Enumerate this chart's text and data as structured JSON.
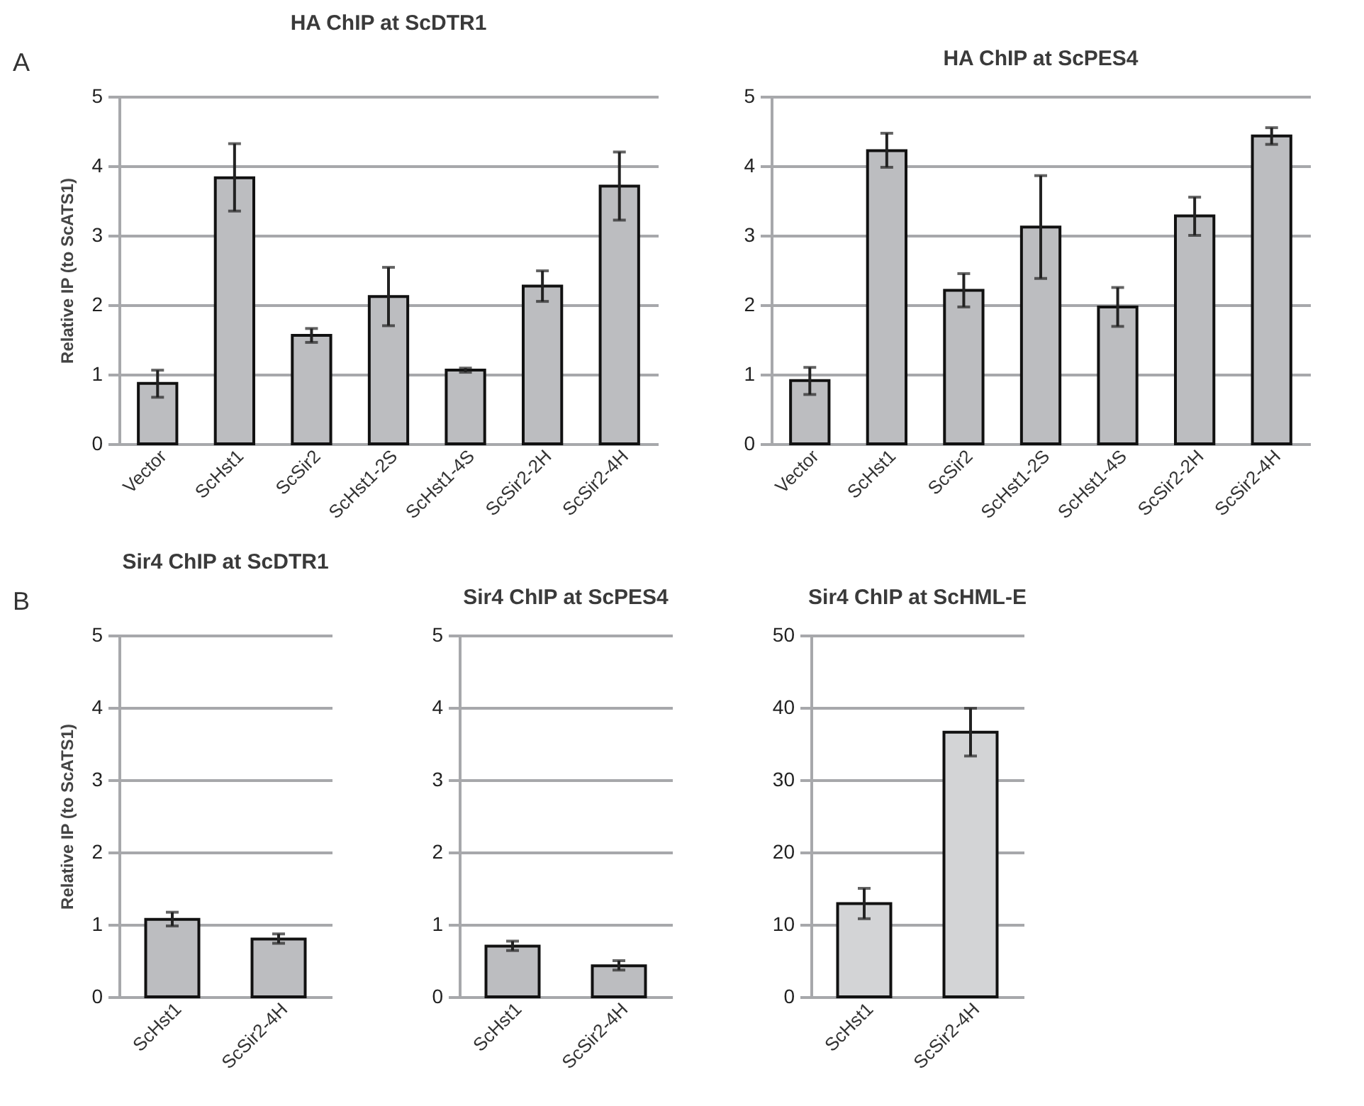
{
  "chart_data": [
    {
      "type": "bar",
      "title": "HA ChIP at ScDTR1",
      "ylabel": "Relative IP (to ScATS1)",
      "annotations": [
        "A"
      ],
      "categories": [
        "Vector",
        "ScHst1",
        "ScSir2",
        "ScHst1-2S",
        "ScHst1-4S",
        "ScSir2-2H",
        "ScSir2-4H"
      ],
      "values": [
        0.87,
        3.83,
        1.56,
        2.12,
        1.06,
        2.27,
        3.71
      ],
      "errors": [
        [
          0.67,
          1.06
        ],
        [
          3.35,
          4.32
        ],
        [
          1.46,
          1.66
        ],
        [
          1.7,
          2.54
        ],
        [
          1.03,
          1.09
        ],
        [
          2.05,
          2.49
        ],
        [
          3.22,
          4.2
        ]
      ],
      "color": "#bcbdc0",
      "ylim": [
        0,
        5
      ],
      "yticks": [
        0,
        1,
        2,
        3,
        4,
        5
      ],
      "grid": "y"
    },
    {
      "type": "bar",
      "title": "HA ChIP at ScPES4",
      "categories": [
        "Vector",
        "ScHst1",
        "ScSir2",
        "ScHst1-2S",
        "ScHst1-4S",
        "ScSir2-2H",
        "ScSir2-4H"
      ],
      "values": [
        0.91,
        4.22,
        2.21,
        3.12,
        1.97,
        3.28,
        4.43
      ],
      "errors": [
        [
          0.71,
          1.1
        ],
        [
          3.98,
          4.47
        ],
        [
          1.97,
          2.45
        ],
        [
          2.38,
          3.86
        ],
        [
          1.69,
          2.25
        ],
        [
          3.0,
          3.55
        ],
        [
          4.31,
          4.55
        ]
      ],
      "color": "#bcbdc0",
      "ylim": [
        0,
        5
      ],
      "yticks": [
        0,
        1,
        2,
        3,
        4,
        5
      ],
      "grid": "y"
    },
    {
      "type": "bar",
      "title": "Sir4 ChIP at ScDTR1",
      "ylabel": "Relative IP (to ScATS1)",
      "annotations": [
        "B"
      ],
      "categories": [
        "ScHst1",
        "ScSir2-4H"
      ],
      "values": [
        1.07,
        0.8
      ],
      "errors": [
        [
          0.98,
          1.17
        ],
        [
          0.74,
          0.87
        ]
      ],
      "color": "#bcbdc0",
      "ylim": [
        0,
        5
      ],
      "yticks": [
        0,
        1,
        2,
        3,
        4,
        5
      ],
      "grid": "y"
    },
    {
      "type": "bar",
      "title": "Sir4 ChIP at ScPES4",
      "categories": [
        "ScHst1",
        "ScSir2-4H"
      ],
      "values": [
        0.7,
        0.43
      ],
      "errors": [
        [
          0.64,
          0.77
        ],
        [
          0.37,
          0.5
        ]
      ],
      "color": "#bcbdc0",
      "ylim": [
        0,
        5
      ],
      "yticks": [
        0,
        1,
        2,
        3,
        4,
        5
      ],
      "grid": "y"
    },
    {
      "type": "bar",
      "title": "Sir4 ChIP at ScHML-E",
      "categories": [
        "ScHst1",
        "ScSir2-4H"
      ],
      "values": [
        12.9,
        36.6
      ],
      "errors": [
        [
          10.8,
          15
        ],
        [
          33.3,
          39.9
        ]
      ],
      "color": "#d3d4d6",
      "ylim": [
        0,
        50
      ],
      "yticks": [
        0,
        10,
        20,
        30,
        40,
        50
      ],
      "grid": "y"
    }
  ]
}
